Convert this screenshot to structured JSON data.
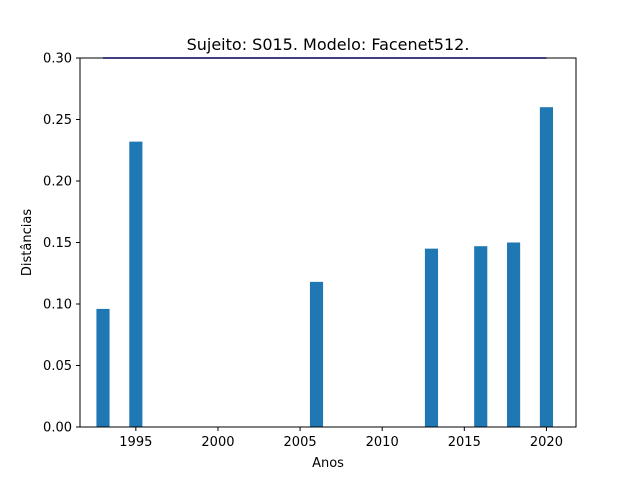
{
  "chart_data": {
    "type": "bar",
    "title": "Sujeito: S015. Modelo: Facenet512.",
    "xlabel": "Anos",
    "ylabel": "Distâncias",
    "xlim": [
      1991.6,
      2021.8
    ],
    "ylim": [
      0.0,
      0.3
    ],
    "x_ticks": [
      1995,
      2000,
      2005,
      2010,
      2015,
      2020
    ],
    "y_ticks": [
      0.0,
      0.05,
      0.1,
      0.15,
      0.2,
      0.25,
      0.3
    ],
    "x_tick_labels": [
      "1995",
      "2000",
      "2005",
      "2010",
      "2015",
      "2020"
    ],
    "y_tick_labels": [
      "0.00",
      "0.05",
      "0.10",
      "0.15",
      "0.20",
      "0.25",
      "0.30"
    ],
    "bar_width_years": 0.8,
    "grid": false,
    "series": [
      {
        "type": "bar",
        "color": "#1f77b4",
        "x": [
          1993,
          1995,
          2006,
          2013,
          2016,
          2018,
          2020
        ],
        "values": [
          0.096,
          0.232,
          0.118,
          0.145,
          0.147,
          0.15,
          0.26
        ]
      },
      {
        "type": "line",
        "color": "#0000ff",
        "x": [
          1993,
          2020
        ],
        "values": [
          0.3,
          0.3
        ]
      }
    ]
  }
}
